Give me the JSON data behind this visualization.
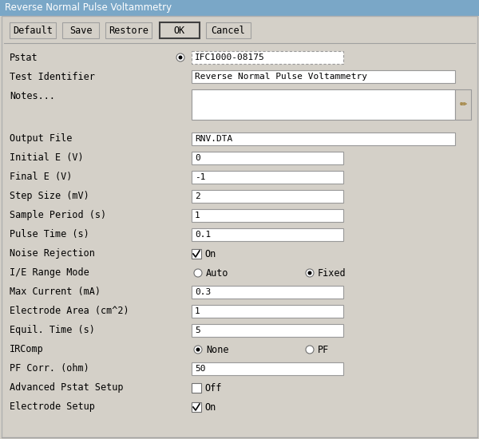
{
  "title": "Reverse Normal Pulse Voltammetry",
  "bg_color": "#d4d0c8",
  "title_bar_color": "#7aa7c7",
  "field_bg": "#ffffff",
  "button_bg": "#d4d0c8",
  "rows": [
    {
      "label": "Pstat",
      "type": "radio_text",
      "value": "IFC1000-08175"
    },
    {
      "label": "Test Identifier",
      "type": "text",
      "value": "Reverse Normal Pulse Voltammetry",
      "wide": true
    },
    {
      "label": "Notes...",
      "type": "textarea",
      "value": ""
    },
    {
      "label": "",
      "type": "spacer"
    },
    {
      "label": "Output File",
      "type": "text",
      "value": "RNV.DTA",
      "wide": true
    },
    {
      "label": "Initial E (V)",
      "type": "text",
      "value": "0"
    },
    {
      "label": "Final E (V)",
      "type": "text",
      "value": "-1"
    },
    {
      "label": "Step Size (mV)",
      "type": "text",
      "value": "2"
    },
    {
      "label": "Sample Period (s)",
      "type": "text",
      "value": "1"
    },
    {
      "label": "Pulse Time (s)",
      "type": "text",
      "value": "0.1"
    },
    {
      "label": "Noise Rejection",
      "type": "checkbox",
      "checked": true,
      "check_label": "On"
    },
    {
      "label": "I/E Range Mode",
      "type": "radio_pair",
      "options": [
        "Auto",
        "Fixed"
      ],
      "selected": 1
    },
    {
      "label": "Max Current (mA)",
      "type": "text",
      "value": "0.3"
    },
    {
      "label": "Electrode Area (cm^2)",
      "type": "text",
      "value": "1"
    },
    {
      "label": "Equil. Time (s)",
      "type": "text",
      "value": "5"
    },
    {
      "label": "IRComp",
      "type": "radio_pair",
      "options": [
        "None",
        "PF"
      ],
      "selected": 0
    },
    {
      "label": "PF Corr. (ohm)",
      "type": "text",
      "value": "50"
    },
    {
      "label": "Advanced Pstat Setup",
      "type": "checkbox",
      "checked": false,
      "check_label": "Off"
    },
    {
      "label": "Electrode Setup",
      "type": "checkbox",
      "checked": true,
      "check_label": "On"
    }
  ]
}
